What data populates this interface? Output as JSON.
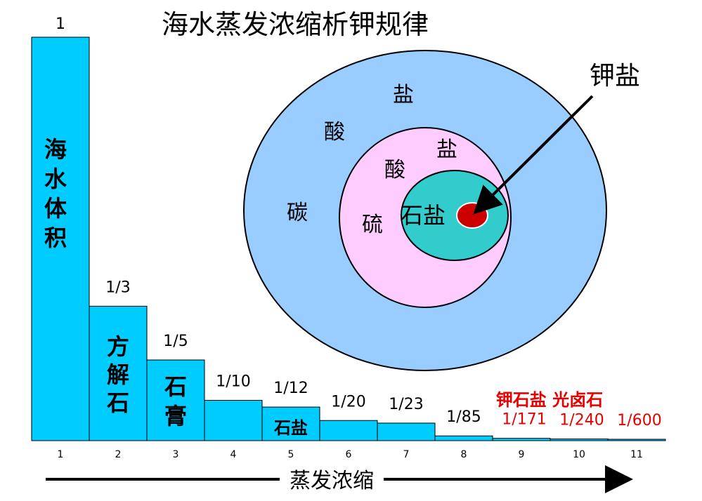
{
  "chart_data": {
    "type": "bar",
    "title": "海水蒸发浓缩析钾规律",
    "xlabel": "蒸发浓缩",
    "ylabel": "",
    "ylim": [
      0,
      1
    ],
    "categories": [
      "1",
      "2",
      "3",
      "4",
      "5",
      "6",
      "7",
      "8",
      "9",
      "10",
      "11"
    ],
    "values": [
      1,
      0.3333,
      0.2,
      0.1,
      0.0833,
      0.05,
      0.0435,
      0.0118,
      0.0058,
      0.0042,
      0.0017
    ],
    "value_labels": [
      "1",
      "1/3",
      "1/5",
      "1/10",
      "1/12",
      "1/20",
      "1/23",
      "1/85",
      "1/171",
      "1/240",
      "1/600"
    ],
    "bar_inner_labels": [
      "海水体积",
      "",
      "",
      "",
      "",
      "",
      "",
      "",
      "",
      "",
      ""
    ],
    "bar_bottom_labels": [
      "",
      "方解石",
      "石膏",
      "",
      "石盐",
      "",
      "",
      "",
      "",
      "",
      ""
    ],
    "bar_color": "#00ccff",
    "highlight_color": "#e60000",
    "highlight_from_index": 8,
    "highlight_note": "钾石盐 光卤石",
    "grid": false
  },
  "diagram": {
    "rings": [
      {
        "name": "outer",
        "color": "#99ccff",
        "labels": [
          "盐",
          "酸",
          "碳"
        ]
      },
      {
        "name": "middle",
        "color": "#ffccff",
        "labels": [
          "盐",
          "酸",
          "硫"
        ]
      },
      {
        "name": "inner",
        "color": "#33cccc",
        "labels": [
          "石盐"
        ]
      },
      {
        "name": "core",
        "color": "#cc0000",
        "labels": []
      }
    ],
    "pointer_label": "钾盐"
  }
}
